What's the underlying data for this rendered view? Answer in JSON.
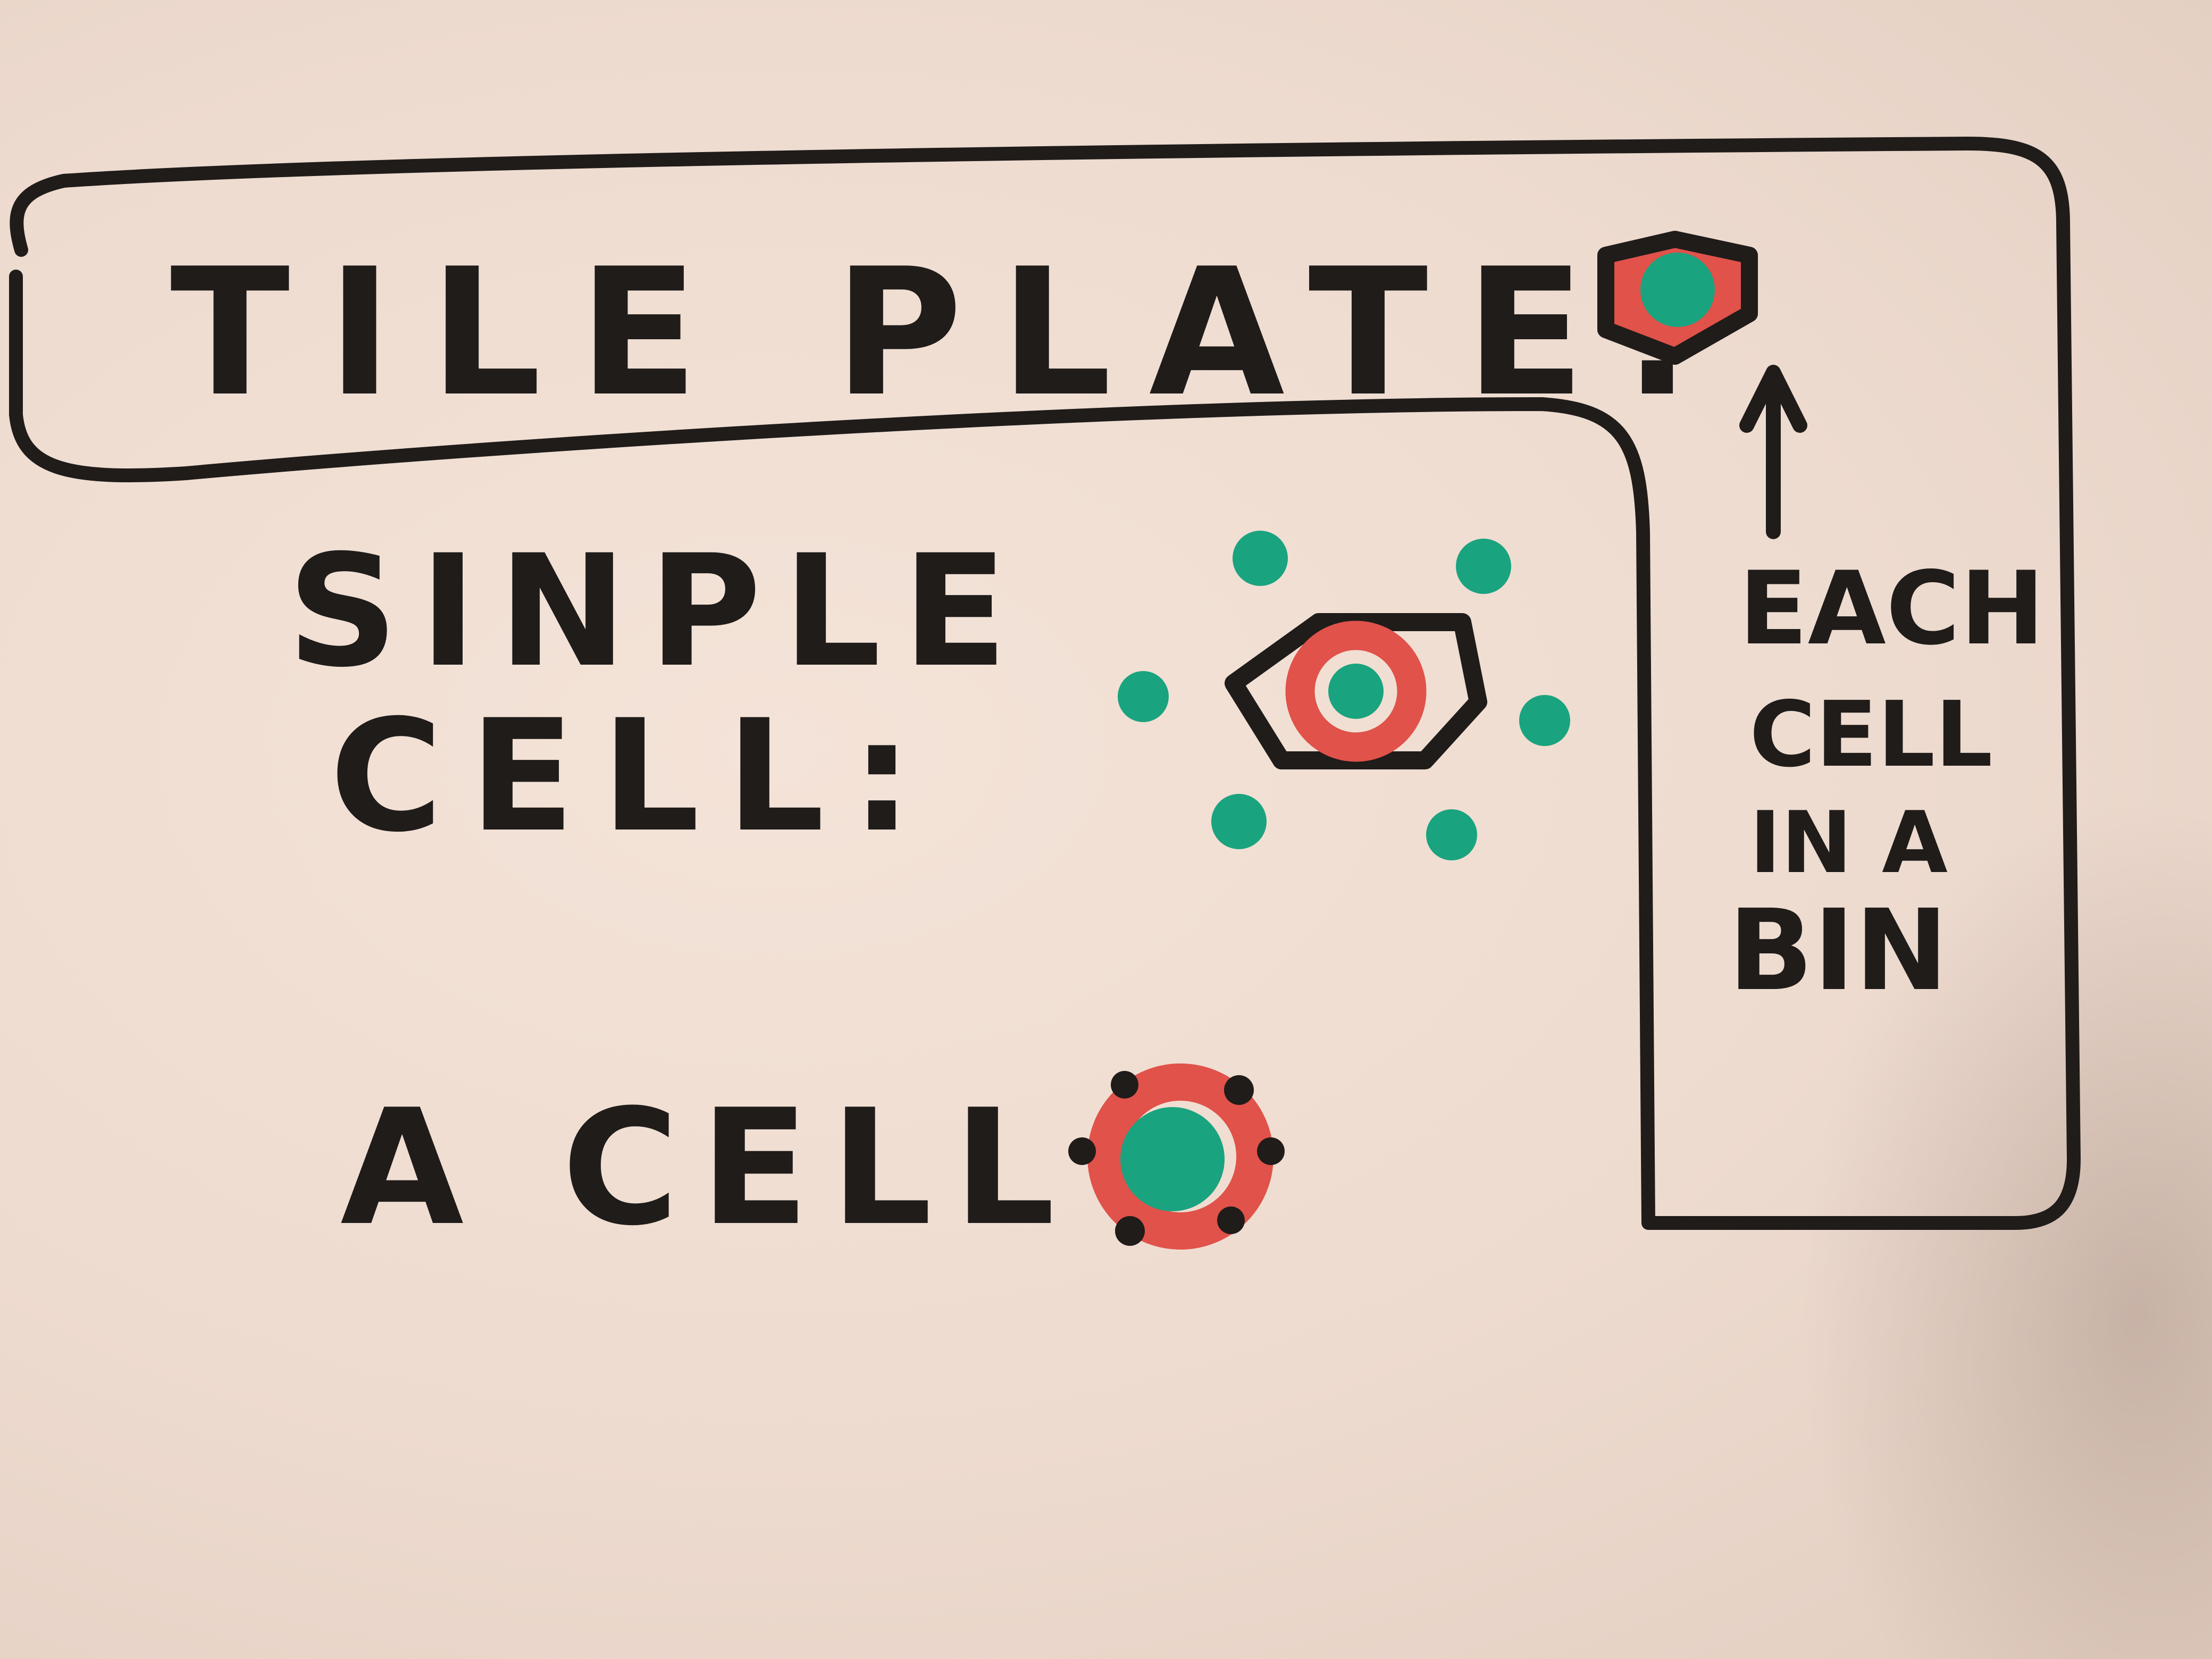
{
  "labels": {
    "tile_plate": "TILE PLATE:",
    "single_cell_line1": "SINPLE",
    "single_cell_line2": "CELL:",
    "a_cell": "A CELL",
    "each_cell_line1": "EACH",
    "each_cell_line2": "CELL",
    "each_cell_line3": "IN A",
    "each_cell_line4": "BIN"
  },
  "colors": {
    "ink_black": "#1f1c1a",
    "ink_red": "#e0524a",
    "ink_green": "#1aa37f",
    "paper": "#f1e0d5"
  },
  "icons": {
    "tile_plate_symbol": "hexagon-cell-icon",
    "single_cell_symbol": "hexagon-cell-with-neighbors-icon",
    "a_cell_symbol": "cell-with-spikes-icon",
    "arrow": "arrow-up-icon"
  }
}
